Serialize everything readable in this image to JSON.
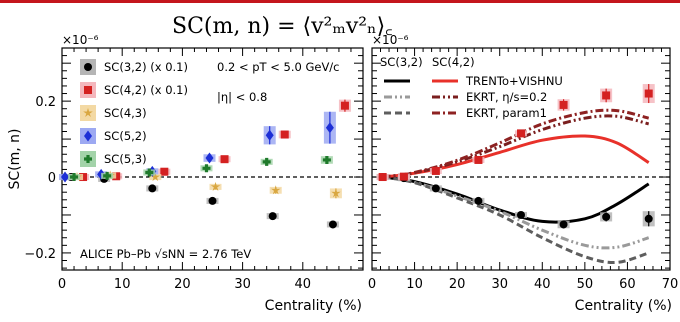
{
  "page": {
    "formula": "SC(m, n) = ⟨v²ₘv²ₙ⟩꜀"
  },
  "chart_data": [
    {
      "type": "scatter",
      "panel": "left",
      "xlabel": "Centrality (%)",
      "ylabel": "SC(m, n)",
      "multiplier": "×10⁻⁶",
      "xlim": [
        0,
        50
      ],
      "ylim": [
        -0.245,
        0.34
      ],
      "xticks": [
        0,
        10,
        20,
        30,
        40
      ],
      "yticks": [
        -0.2,
        0,
        0.2
      ],
      "yticklabels": [
        "−0.2",
        "0",
        "0.2"
      ],
      "zero_line": "dashed",
      "annotations": [
        "0.2 < pT < 5.0 GeV/c",
        "|η| < 0.8",
        "ALICE Pb–Pb  √sNN = 2.76 TeV"
      ],
      "series": [
        {
          "name": "SC(3,2) (x 0.1)",
          "marker": "circle",
          "color": "#000000",
          "band": "#b5b5b5",
          "x": [
            1.5,
            7,
            15,
            25,
            35,
            45
          ],
          "y": [
            0.0,
            -0.005,
            -0.03,
            -0.063,
            -0.103,
            -0.125
          ]
        },
        {
          "name": "SC(4,2) (x 0.1)",
          "marker": "square",
          "color": "#d42121",
          "band": "#f4b7bd",
          "x": [
            3.5,
            9,
            17,
            27,
            37,
            47
          ],
          "y": [
            0.0,
            0.002,
            0.014,
            0.047,
            0.112,
            0.188
          ],
          "err": [
            0.003,
            0.003,
            0.004,
            0.006,
            0.01,
            0.016
          ]
        },
        {
          "name": "SC(4,3)",
          "marker": "star",
          "color": "#d9a741",
          "band": "#f3d9a4",
          "x": [
            2.5,
            8,
            15.5,
            25.5,
            35.5,
            45.5
          ],
          "y": [
            0.0,
            0.004,
            0.0,
            -0.026,
            -0.035,
            -0.043
          ],
          "err": [
            0.002,
            0.003,
            0.005,
            0.007,
            0.009,
            0.013
          ]
        },
        {
          "name": "SC(5,2)",
          "marker": "diamond",
          "color": "#1d2fd6",
          "band": "#9da9f2",
          "x": [
            0.5,
            6.5,
            15,
            24.5,
            34.5,
            44.5
          ],
          "y": [
            0.0,
            0.007,
            0.015,
            0.05,
            0.11,
            0.13
          ],
          "err": [
            0.003,
            0.004,
            0.006,
            0.01,
            0.024,
            0.042
          ]
        },
        {
          "name": "SC(5,3)",
          "marker": "cross",
          "color": "#1f7a2b",
          "band": "#a3d3a9",
          "x": [
            2,
            7.5,
            14.5,
            24,
            34,
            44
          ],
          "y": [
            0.0,
            0.003,
            0.012,
            0.023,
            0.04,
            0.045
          ],
          "err": [
            0.002,
            0.003,
            0.004,
            0.006,
            0.008,
            0.01
          ]
        }
      ]
    },
    {
      "type": "line",
      "panel": "right",
      "xlabel": "Centrality (%)",
      "multiplier": "×10⁻⁶",
      "xlim": [
        0,
        70
      ],
      "ylim": [
        -0.245,
        0.34
      ],
      "xticks": [
        0,
        10,
        20,
        30,
        40,
        50,
        60,
        70
      ],
      "yticks": [
        -0.2,
        0,
        0.2
      ],
      "zero_line": "dashed",
      "legend_headers": [
        "SC(3,2)",
        "SC(4,2)"
      ],
      "legend_labels": [
        "TRENTo+VISHNU",
        "EKRT, η/s=0.2",
        "EKRT, param1"
      ],
      "data_series": [
        {
          "name": "SC(3,2)",
          "marker": "circle",
          "color": "#000000",
          "band": "#b5b5b5",
          "x": [
            2.5,
            7.5,
            15,
            25,
            35,
            45,
            55,
            65
          ],
          "y": [
            0.0,
            -0.003,
            -0.03,
            -0.063,
            -0.1,
            -0.125,
            -0.105,
            -0.11
          ],
          "err": [
            0.0,
            0.002,
            0.004,
            0.005,
            0.008,
            0.01,
            0.012,
            0.02
          ]
        },
        {
          "name": "SC(4,2)",
          "marker": "square",
          "color": "#d42121",
          "band": "#f4b7bd",
          "x": [
            2.5,
            7.5,
            15,
            25,
            35,
            45,
            55,
            65
          ],
          "y": [
            0.0,
            0.001,
            0.016,
            0.045,
            0.115,
            0.19,
            0.215,
            0.22
          ],
          "err": [
            0.0,
            0.002,
            0.003,
            0.005,
            0.008,
            0.015,
            0.018,
            0.025
          ]
        }
      ],
      "models": [
        {
          "name": "TRENTo+VISHNU SC(3,2)",
          "color": "#000000",
          "dash": "solid",
          "x": [
            2.5,
            10,
            20,
            30,
            40,
            50,
            57.5,
            65
          ],
          "y": [
            0.0,
            -0.012,
            -0.045,
            -0.087,
            -0.117,
            -0.11,
            -0.072,
            -0.018
          ]
        },
        {
          "name": "TRENTo+VISHNU SC(4,2)",
          "color": "#e8312a",
          "dash": "solid",
          "x": [
            2.5,
            10,
            20,
            30,
            40,
            50,
            57.5,
            65
          ],
          "y": [
            0.0,
            0.01,
            0.033,
            0.065,
            0.097,
            0.108,
            0.09,
            0.038
          ]
        },
        {
          "name": "EKRT, η/s=0.2 SC(3,2)",
          "color": "#9a9a9a",
          "dash": "dashdotdot",
          "x": [
            2.5,
            10,
            20,
            30,
            40,
            50,
            57.5,
            65
          ],
          "y": [
            0.0,
            -0.014,
            -0.05,
            -0.09,
            -0.14,
            -0.18,
            -0.185,
            -0.16
          ]
        },
        {
          "name": "EKRT, param1 SC(3,2)",
          "color": "#5e5e5e",
          "dash": "dashed",
          "x": [
            2.5,
            10,
            20,
            30,
            40,
            50,
            57.5,
            65
          ],
          "y": [
            0.0,
            -0.015,
            -0.055,
            -0.1,
            -0.16,
            -0.21,
            -0.225,
            -0.2
          ]
        },
        {
          "name": "EKRT, η/s=0.2 SC(4,2)",
          "color": "#7a1e1e",
          "dash": "dashdotdot",
          "x": [
            2.5,
            10,
            20,
            30,
            40,
            50,
            57.5,
            65
          ],
          "y": [
            0.0,
            0.011,
            0.04,
            0.08,
            0.125,
            0.155,
            0.16,
            0.14
          ]
        },
        {
          "name": "EKRT, param1 SC(4,2)",
          "color": "#8e2222",
          "dash": "dashdot",
          "x": [
            2.5,
            10,
            20,
            30,
            40,
            50,
            57.5,
            65
          ],
          "y": [
            0.0,
            0.012,
            0.044,
            0.09,
            0.14,
            0.17,
            0.175,
            0.155
          ]
        }
      ]
    }
  ]
}
